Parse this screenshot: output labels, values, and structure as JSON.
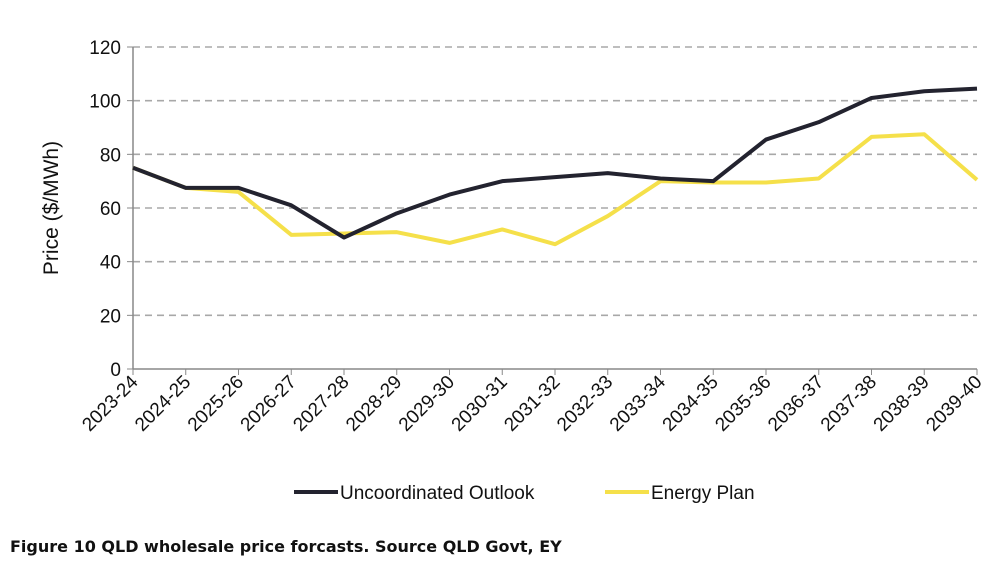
{
  "chart_data": {
    "type": "line",
    "title": "",
    "xlabel": "",
    "ylabel": "Price ($/MWh)",
    "ylim": [
      0,
      120
    ],
    "yticks": [
      0,
      20,
      40,
      60,
      80,
      100,
      120
    ],
    "grid": true,
    "legend_placement": "bottom",
    "categories": [
      "2023-24",
      "2024-25",
      "2025-26",
      "2026-27",
      "2027-28",
      "2028-29",
      "2029-30",
      "2030-31",
      "2031-32",
      "2032-33",
      "2033-34",
      "2034-35",
      "2035-36",
      "2036-37",
      "2037-38",
      "2038-39",
      "2039-40"
    ],
    "series": [
      {
        "name": "Uncoordinated Outlook",
        "color": "#23232f",
        "values": [
          75,
          67.5,
          67.5,
          61,
          49,
          58,
          65,
          70,
          71.5,
          73,
          71,
          70,
          85.5,
          92,
          101,
          103.5,
          104.5
        ]
      },
      {
        "name": "Energy Plan",
        "color": "#f5e04a",
        "values": [
          75,
          67.5,
          66,
          50,
          50.5,
          51,
          47,
          52,
          46.5,
          57,
          70,
          69.5,
          69.5,
          71,
          86.5,
          87.5,
          70.5
        ]
      }
    ]
  },
  "caption": "Figure 10 QLD wholesale price forcasts. Source QLD Govt, EY"
}
